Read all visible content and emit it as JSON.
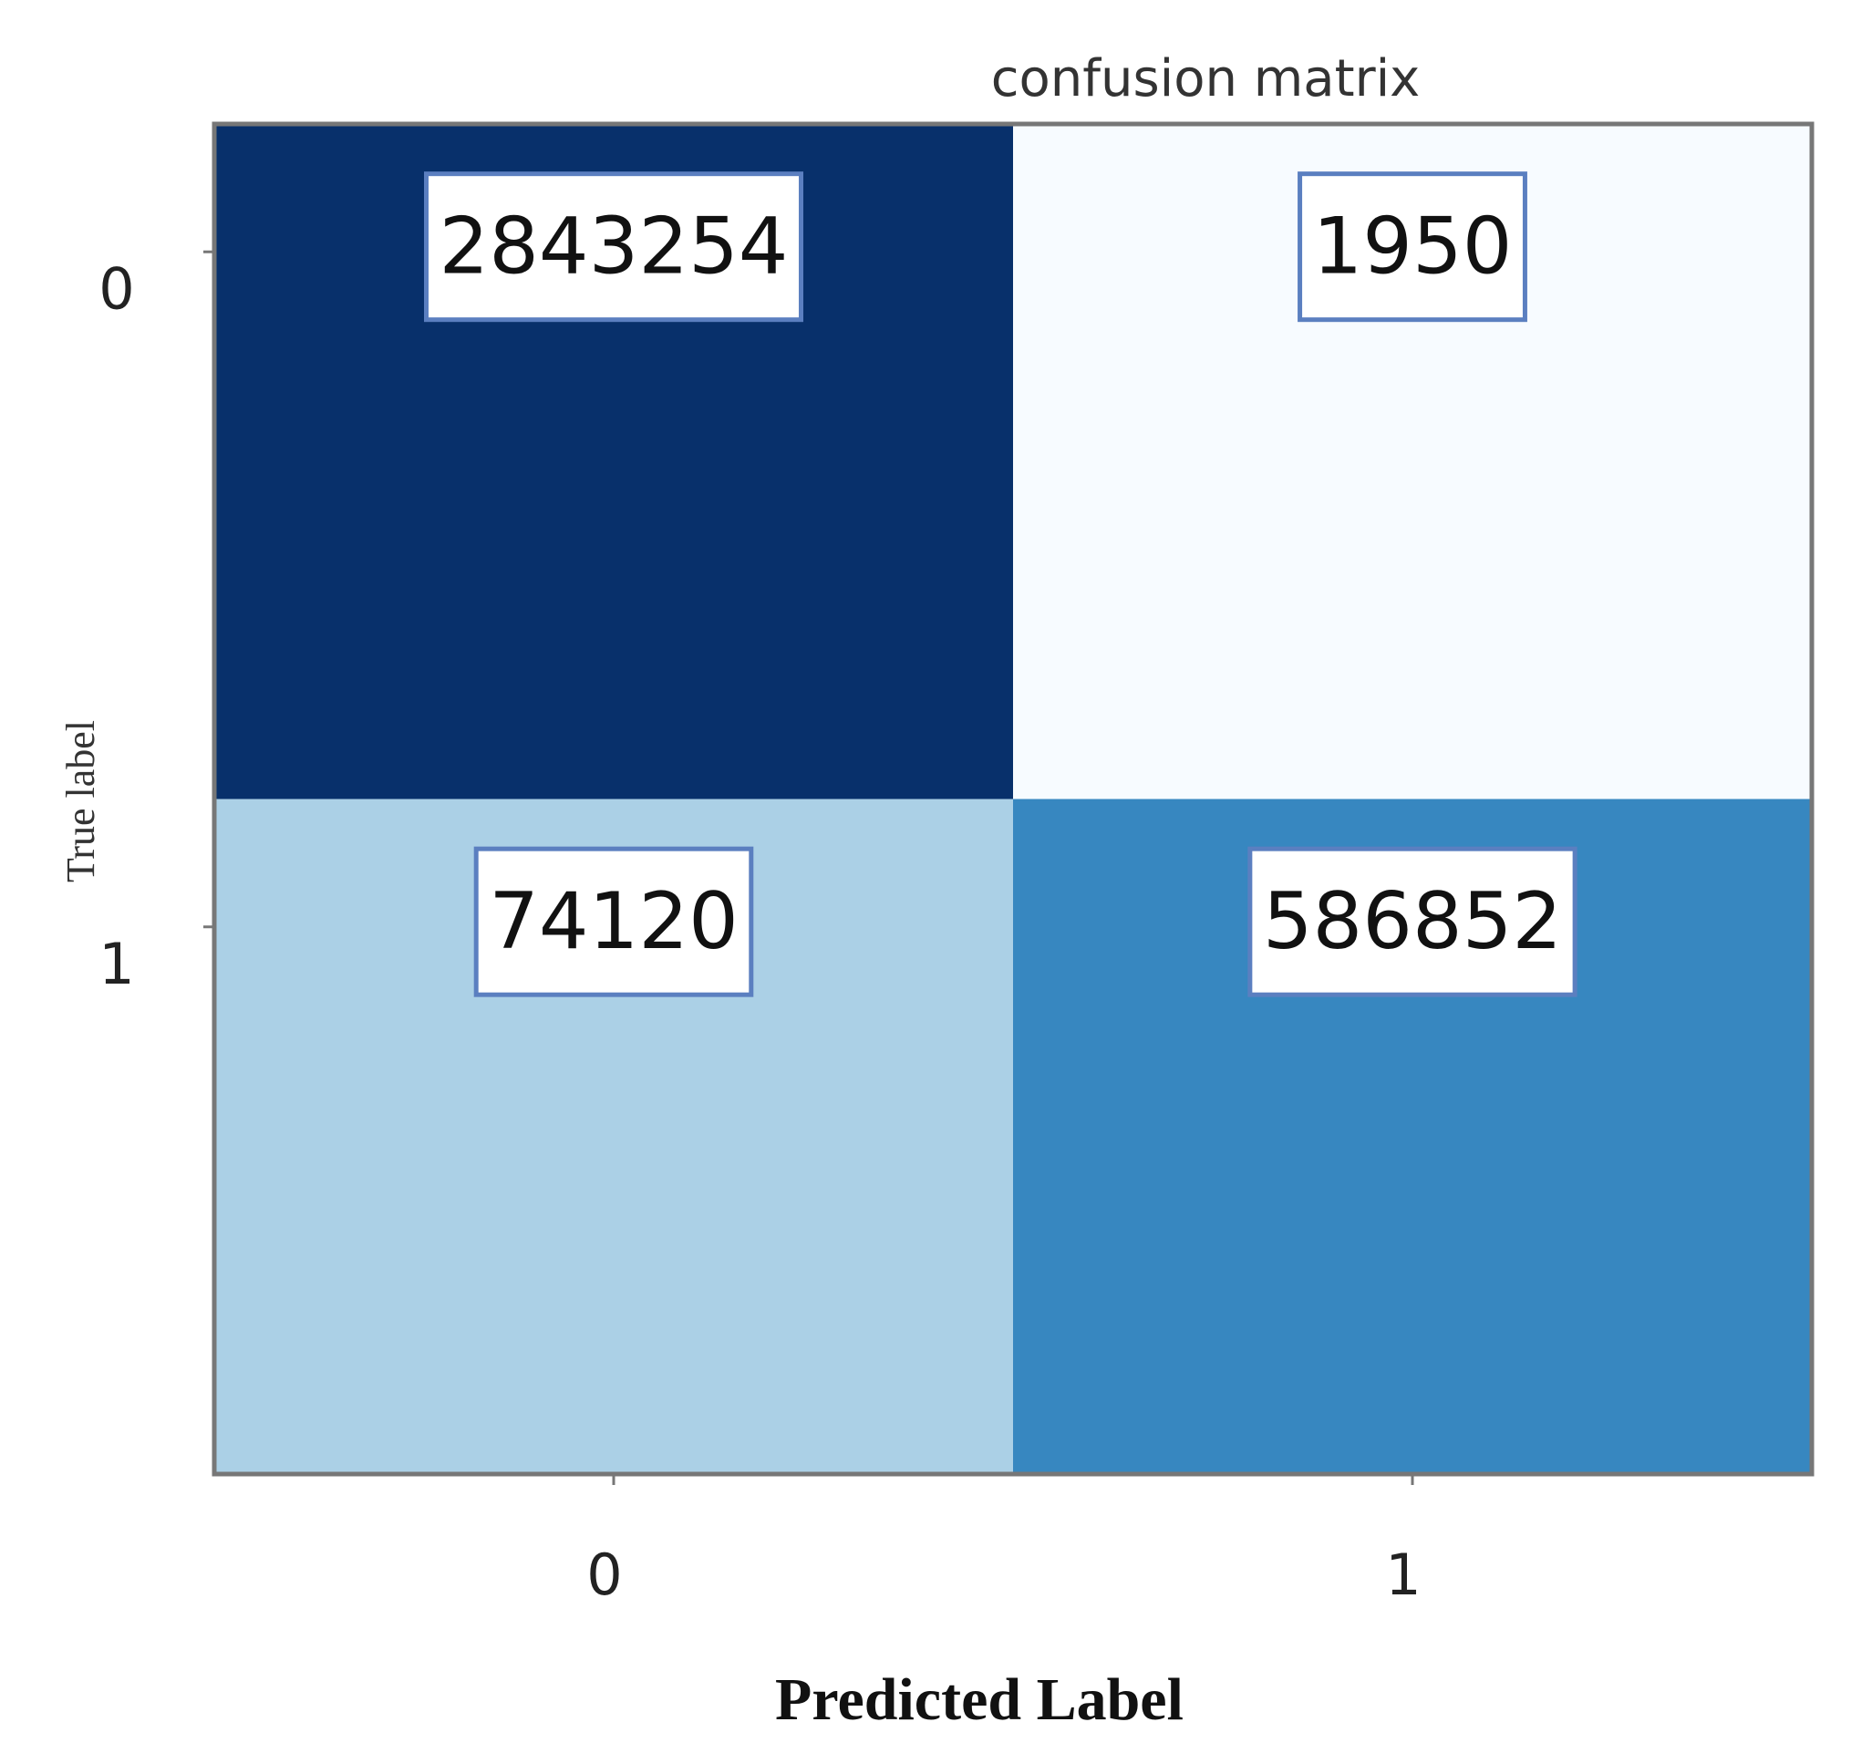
{
  "chart_data": {
    "type": "heatmap",
    "title": "confusion matrix",
    "x_label": "Predicted Label",
    "y_label": "True label",
    "x_categories": [
      "0",
      "1"
    ],
    "y_categories": [
      "0",
      "1"
    ],
    "values": [
      [
        2843254,
        1950
      ],
      [
        74120,
        586852
      ]
    ],
    "colors": [
      [
        "#08306b",
        "#f7fbff"
      ],
      [
        "#abd0e6",
        "#3787c0"
      ]
    ]
  }
}
